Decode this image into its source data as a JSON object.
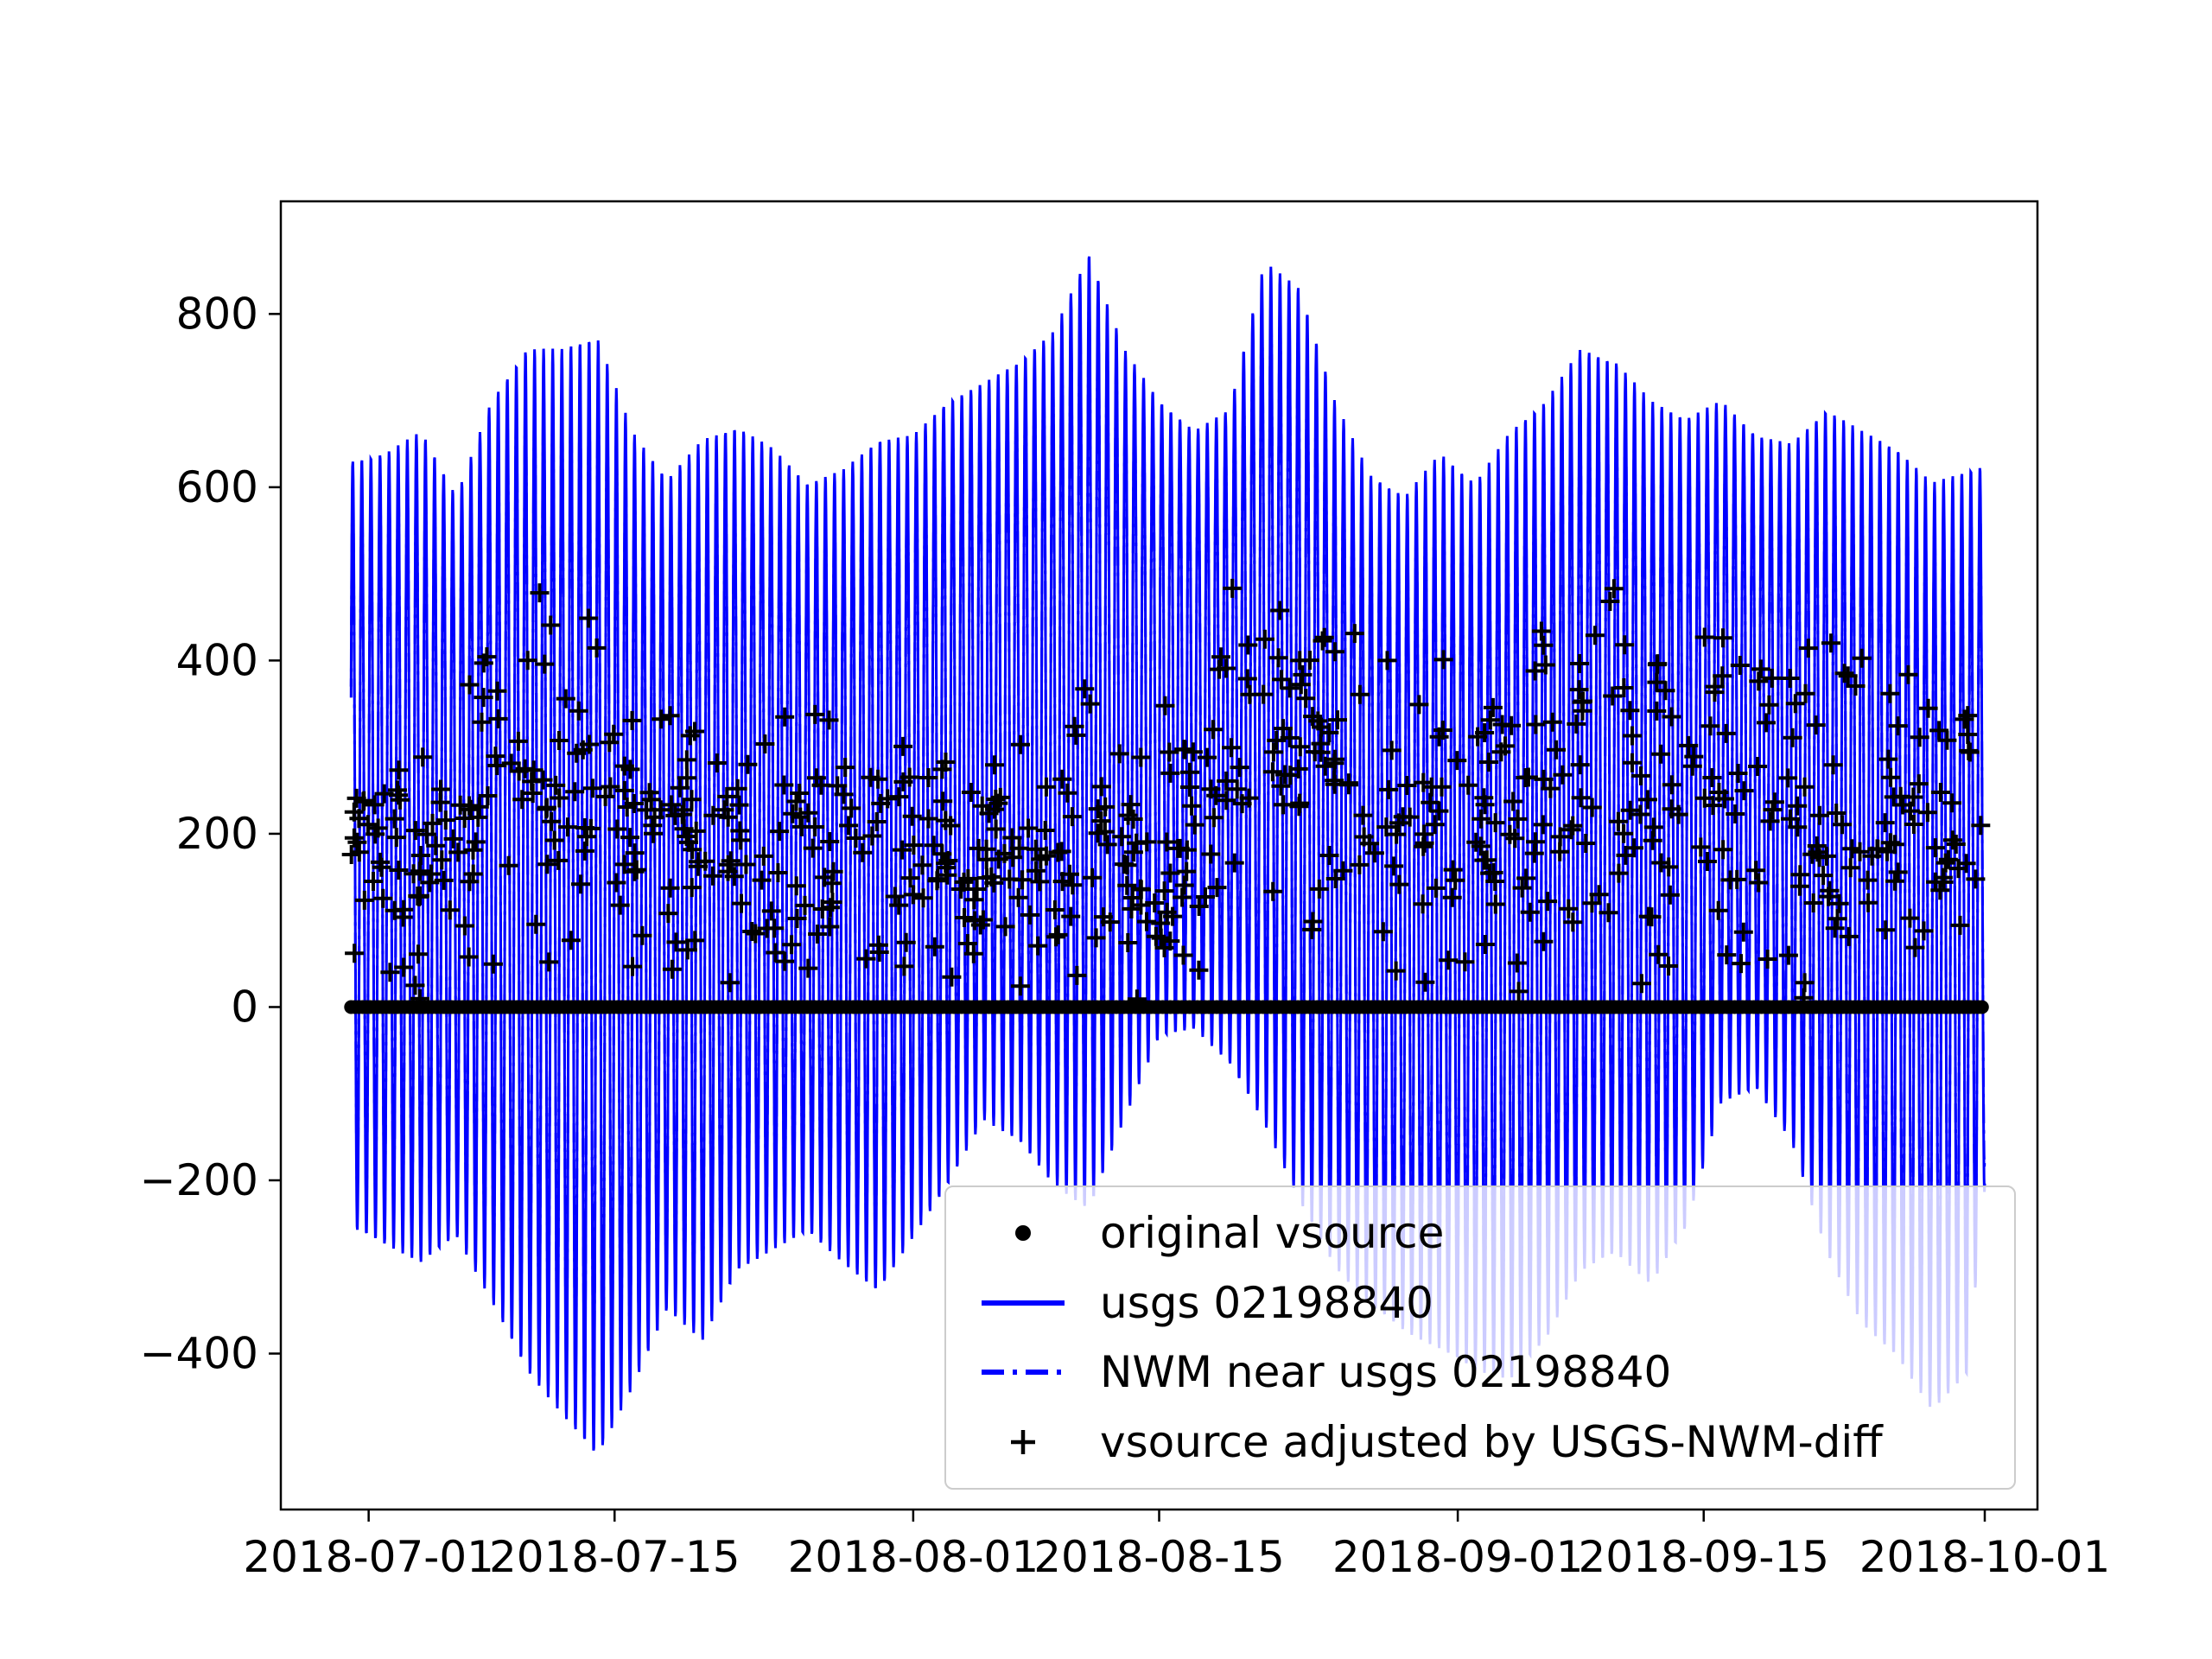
{
  "chart_data": {
    "type": "line",
    "title": "",
    "xlabel": "",
    "ylabel": "",
    "grid": false,
    "legend_position": "lower right",
    "x_axis": {
      "tick_labels": [
        "2018-07-01",
        "2018-07-15",
        "2018-08-01",
        "2018-08-15",
        "2018-09-01",
        "2018-09-15",
        "2018-10-01"
      ],
      "tick_days": [
        0,
        14,
        31,
        45,
        62,
        76,
        92
      ],
      "xlim_days": [
        -5,
        95
      ]
    },
    "y_axis": {
      "ticks": [
        -400,
        -200,
        0,
        200,
        400,
        600,
        800
      ],
      "tick_labels": [
        "−400",
        "−200",
        "0",
        "200",
        "400",
        "600",
        "800"
      ],
      "ylim": [
        -580,
        930
      ]
    },
    "colors": {
      "signal": "#0000ff",
      "markers": "#000000",
      "frame": "#000000",
      "legend_border": "#cccccc"
    },
    "tide_period_days": 0.5175,
    "nwm_amplitude_factor": 0.93,
    "envelope": {
      "comment_units": "days since 2018-07-01, discharge-like units as on y axis",
      "days": [
        -1,
        1,
        3,
        5,
        7,
        9,
        11,
        13,
        15,
        17,
        19,
        21,
        23,
        25,
        27,
        29,
        31,
        33,
        35,
        37,
        39,
        41,
        43,
        45,
        47,
        49,
        51,
        53,
        55,
        57,
        59,
        61,
        63,
        65,
        67,
        69,
        71,
        73,
        75,
        77,
        79,
        81,
        83,
        85,
        87,
        89,
        91,
        92
      ],
      "upper": [
        630,
        640,
        665,
        590,
        700,
        760,
        760,
        775,
        665,
        610,
        655,
        670,
        645,
        605,
        620,
        655,
        660,
        700,
        720,
        745,
        780,
        870,
        760,
        700,
        665,
        690,
        860,
        830,
        700,
        615,
        590,
        640,
        605,
        665,
        700,
        760,
        745,
        700,
        680,
        700,
        660,
        650,
        690,
        665,
        645,
        605,
        620,
        625
      ],
      "lower": [
        -255,
        -275,
        -295,
        -265,
        -340,
        -420,
        -470,
        -520,
        -440,
        -350,
        -385,
        -305,
        -280,
        -260,
        -295,
        -330,
        -265,
        -205,
        -130,
        -155,
        -205,
        -235,
        -130,
        -35,
        -25,
        -65,
        -135,
        -225,
        -300,
        -345,
        -375,
        -395,
        -420,
        -430,
        -385,
        -305,
        -285,
        -320,
        -255,
        -110,
        -95,
        -155,
        -285,
        -365,
        -405,
        -465,
        -425,
        -210
      ]
    },
    "original_vsource": {
      "y": 0,
      "day_start": -1,
      "day_end": 92,
      "marker_radius_px": 8,
      "spacing_days": 0.22
    },
    "plus_cloud": {
      "count": 760,
      "seed": 20180701,
      "bands": [
        [
          -1,
          -5,
          340
        ],
        [
          3,
          0,
          330
        ],
        [
          7,
          20,
          500
        ],
        [
          11,
          0,
          500
        ],
        [
          15,
          0,
          430
        ],
        [
          19,
          0,
          400
        ],
        [
          23,
          10,
          385
        ],
        [
          27,
          0,
          390
        ],
        [
          31,
          0,
          355
        ],
        [
          35,
          0,
          335
        ],
        [
          39,
          0,
          380
        ],
        [
          43,
          0,
          400
        ],
        [
          45,
          0,
          380
        ],
        [
          47,
          -10,
          420
        ],
        [
          51,
          0,
          570
        ],
        [
          53,
          0,
          545
        ],
        [
          57,
          0,
          465
        ],
        [
          61,
          -10,
          420
        ],
        [
          65,
          0,
          485
        ],
        [
          69,
          0,
          520
        ],
        [
          73,
          0,
          465
        ],
        [
          77,
          0,
          445
        ],
        [
          81,
          0,
          470
        ],
        [
          85,
          0,
          455
        ],
        [
          89,
          0,
          425
        ],
        [
          92,
          0,
          410
        ]
      ]
    },
    "legend": {
      "items": [
        {
          "marker": "dot",
          "label": "original vsource"
        },
        {
          "marker": "line",
          "label": "usgs 02198840"
        },
        {
          "marker": "dashdot",
          "label": "NWM near usgs 02198840"
        },
        {
          "marker": "plus",
          "label": "vsource adjusted by USGS-NWM-diff"
        }
      ]
    }
  }
}
